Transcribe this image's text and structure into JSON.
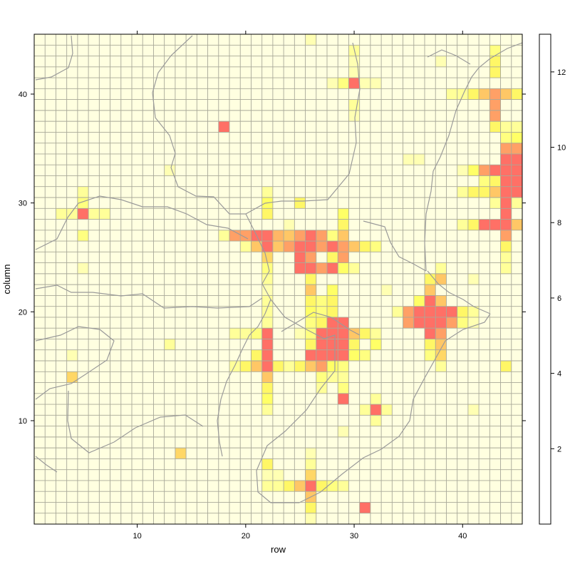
{
  "chart_data": {
    "type": "heatmap",
    "title": "",
    "xlabel": "row",
    "ylabel": "column",
    "xlim": [
      0.5,
      45.5
    ],
    "ylim": [
      0.5,
      45.5
    ],
    "x_ticks": [
      10,
      20,
      30,
      40
    ],
    "y_ticks": [
      10,
      20,
      30,
      40
    ],
    "colorbar": {
      "ticks": [
        2,
        4,
        6,
        8,
        10,
        12
      ],
      "range": [
        0,
        13
      ],
      "palette": [
        "#FFFFE0",
        "#FFFFCC",
        "#FFFFB3",
        "#FFFF99",
        "#FFFF80",
        "#FFFF66",
        "#FFF766",
        "#FFE766",
        "#FFD766",
        "#FFC766",
        "#FFB766",
        "#FFA066",
        "#FF8866",
        "#FF7066",
        "#FF6066"
      ]
    },
    "grid": true,
    "background_map": "coastline/boundary outline",
    "cells": [
      [
        26,
        45,
        2
      ],
      [
        30,
        44,
        3
      ],
      [
        43,
        44,
        4
      ],
      [
        30,
        43,
        2
      ],
      [
        38,
        43,
        2
      ],
      [
        43,
        43,
        6
      ],
      [
        30,
        42,
        2
      ],
      [
        43,
        42,
        6
      ],
      [
        28,
        41,
        2
      ],
      [
        29,
        41,
        4
      ],
      [
        30,
        41,
        12
      ],
      [
        31,
        41,
        2
      ],
      [
        32,
        41,
        2
      ],
      [
        39,
        40,
        3
      ],
      [
        40,
        40,
        3
      ],
      [
        41,
        40,
        6
      ],
      [
        42,
        40,
        8
      ],
      [
        43,
        40,
        10
      ],
      [
        44,
        40,
        8
      ],
      [
        45,
        40,
        6
      ],
      [
        30,
        39,
        3
      ],
      [
        43,
        39,
        10
      ],
      [
        30,
        38,
        2
      ],
      [
        43,
        38,
        10
      ],
      [
        18,
        37,
        12
      ],
      [
        43,
        37,
        6
      ],
      [
        44,
        37,
        3
      ],
      [
        45,
        37,
        3
      ],
      [
        44,
        36,
        4
      ],
      [
        45,
        36,
        5
      ],
      [
        44,
        35,
        10
      ],
      [
        45,
        35,
        10
      ],
      [
        35,
        34,
        2
      ],
      [
        36,
        34,
        2
      ],
      [
        44,
        34,
        12
      ],
      [
        45,
        34,
        12
      ],
      [
        13,
        33,
        2
      ],
      [
        40,
        33,
        2
      ],
      [
        41,
        33,
        5
      ],
      [
        42,
        33,
        10
      ],
      [
        43,
        33,
        12
      ],
      [
        44,
        33,
        12
      ],
      [
        45,
        33,
        12
      ],
      [
        42,
        32,
        4
      ],
      [
        43,
        32,
        6
      ],
      [
        44,
        32,
        12
      ],
      [
        45,
        32,
        12
      ],
      [
        5,
        31,
        3
      ],
      [
        22,
        31,
        3
      ],
      [
        40,
        31,
        3
      ],
      [
        41,
        31,
        6
      ],
      [
        42,
        31,
        6
      ],
      [
        43,
        31,
        8
      ],
      [
        44,
        31,
        12
      ],
      [
        45,
        31,
        12
      ],
      [
        5,
        30,
        4
      ],
      [
        22,
        30,
        5
      ],
      [
        25,
        30,
        6
      ],
      [
        43,
        30,
        3
      ],
      [
        44,
        30,
        12
      ],
      [
        45,
        30,
        3
      ],
      [
        3,
        29,
        3
      ],
      [
        4,
        29,
        3
      ],
      [
        5,
        29,
        12
      ],
      [
        6,
        29,
        3
      ],
      [
        7,
        29,
        3
      ],
      [
        22,
        29,
        6
      ],
      [
        29,
        29,
        5
      ],
      [
        44,
        29,
        12
      ],
      [
        24,
        28,
        2
      ],
      [
        29,
        28,
        6
      ],
      [
        40,
        28,
        3
      ],
      [
        41,
        28,
        6
      ],
      [
        42,
        28,
        12
      ],
      [
        43,
        28,
        12
      ],
      [
        44,
        28,
        12
      ],
      [
        45,
        28,
        8
      ],
      [
        5,
        27,
        4
      ],
      [
        18,
        27,
        3
      ],
      [
        19,
        27,
        10
      ],
      [
        20,
        27,
        10
      ],
      [
        21,
        27,
        12
      ],
      [
        22,
        27,
        12
      ],
      [
        23,
        27,
        9
      ],
      [
        24,
        27,
        8
      ],
      [
        25,
        27,
        10
      ],
      [
        26,
        27,
        12
      ],
      [
        27,
        27,
        10
      ],
      [
        28,
        27,
        4
      ],
      [
        29,
        27,
        8
      ],
      [
        44,
        27,
        10
      ],
      [
        20,
        26,
        3
      ],
      [
        21,
        26,
        8
      ],
      [
        22,
        26,
        12
      ],
      [
        23,
        26,
        8
      ],
      [
        24,
        26,
        10
      ],
      [
        25,
        26,
        12
      ],
      [
        26,
        26,
        12
      ],
      [
        27,
        26,
        10
      ],
      [
        28,
        26,
        12
      ],
      [
        29,
        26,
        10
      ],
      [
        30,
        26,
        8
      ],
      [
        31,
        26,
        6
      ],
      [
        32,
        26,
        4
      ],
      [
        44,
        26,
        6
      ],
      [
        22,
        25,
        7
      ],
      [
        25,
        25,
        12
      ],
      [
        26,
        25,
        10
      ],
      [
        28,
        25,
        6
      ],
      [
        29,
        25,
        10
      ],
      [
        44,
        25,
        3
      ],
      [
        5,
        24,
        2
      ],
      [
        22,
        24,
        4
      ],
      [
        25,
        24,
        12
      ],
      [
        26,
        24,
        12
      ],
      [
        27,
        24,
        10
      ],
      [
        28,
        24,
        12
      ],
      [
        29,
        24,
        5
      ],
      [
        30,
        24,
        3
      ],
      [
        38,
        24,
        3
      ],
      [
        44,
        24,
        3
      ],
      [
        22,
        23,
        3
      ],
      [
        26,
        23,
        6
      ],
      [
        37,
        23,
        6
      ],
      [
        38,
        23,
        8
      ],
      [
        41,
        23,
        2
      ],
      [
        22,
        22,
        2
      ],
      [
        26,
        22,
        8
      ],
      [
        28,
        22,
        5
      ],
      [
        33,
        22,
        2
      ],
      [
        37,
        22,
        8
      ],
      [
        22,
        21,
        3
      ],
      [
        26,
        21,
        6
      ],
      [
        27,
        21,
        4
      ],
      [
        28,
        21,
        6
      ],
      [
        36,
        21,
        5
      ],
      [
        37,
        21,
        12
      ],
      [
        38,
        21,
        8
      ],
      [
        22,
        20,
        3
      ],
      [
        26,
        20,
        5
      ],
      [
        27,
        20,
        4
      ],
      [
        28,
        20,
        6
      ],
      [
        34,
        20,
        3
      ],
      [
        35,
        20,
        10
      ],
      [
        36,
        20,
        12
      ],
      [
        37,
        20,
        12
      ],
      [
        38,
        20,
        12
      ],
      [
        39,
        20,
        12
      ],
      [
        40,
        20,
        6
      ],
      [
        41,
        20,
        3
      ],
      [
        22,
        19,
        3
      ],
      [
        26,
        19,
        4
      ],
      [
        27,
        19,
        6
      ],
      [
        28,
        19,
        12
      ],
      [
        29,
        19,
        12
      ],
      [
        35,
        19,
        10
      ],
      [
        36,
        19,
        12
      ],
      [
        37,
        19,
        12
      ],
      [
        38,
        19,
        12
      ],
      [
        39,
        19,
        10
      ],
      [
        40,
        19,
        4
      ],
      [
        41,
        19,
        2
      ],
      [
        19,
        18,
        3
      ],
      [
        20,
        18,
        3
      ],
      [
        21,
        18,
        4
      ],
      [
        22,
        18,
        12
      ],
      [
        25,
        18,
        2
      ],
      [
        26,
        18,
        4
      ],
      [
        27,
        18,
        12
      ],
      [
        28,
        18,
        12
      ],
      [
        29,
        18,
        12
      ],
      [
        30,
        18,
        8
      ],
      [
        31,
        18,
        6
      ],
      [
        32,
        18,
        3
      ],
      [
        37,
        18,
        12
      ],
      [
        38,
        18,
        10
      ],
      [
        13,
        17,
        3
      ],
      [
        22,
        17,
        12
      ],
      [
        26,
        17,
        6
      ],
      [
        27,
        17,
        12
      ],
      [
        28,
        17,
        12
      ],
      [
        29,
        17,
        12
      ],
      [
        30,
        17,
        6
      ],
      [
        32,
        17,
        5
      ],
      [
        37,
        17,
        6
      ],
      [
        38,
        17,
        8
      ],
      [
        4,
        16,
        2
      ],
      [
        21,
        16,
        6
      ],
      [
        22,
        16,
        12
      ],
      [
        26,
        16,
        12
      ],
      [
        27,
        16,
        12
      ],
      [
        28,
        16,
        12
      ],
      [
        29,
        16,
        12
      ],
      [
        30,
        16,
        5
      ],
      [
        31,
        16,
        4
      ],
      [
        37,
        16,
        4
      ],
      [
        38,
        16,
        7
      ],
      [
        19,
        15,
        3
      ],
      [
        20,
        15,
        6
      ],
      [
        21,
        15,
        8
      ],
      [
        22,
        15,
        12
      ],
      [
        23,
        15,
        6
      ],
      [
        24,
        15,
        3
      ],
      [
        25,
        15,
        6
      ],
      [
        26,
        15,
        8
      ],
      [
        27,
        15,
        10
      ],
      [
        28,
        15,
        5
      ],
      [
        29,
        15,
        4
      ],
      [
        38,
        15,
        3
      ],
      [
        44,
        15,
        6
      ],
      [
        4,
        14,
        7
      ],
      [
        22,
        14,
        8
      ],
      [
        27,
        14,
        4
      ],
      [
        28,
        14,
        3
      ],
      [
        29,
        14,
        3
      ],
      [
        22,
        13,
        6
      ],
      [
        27,
        13,
        3
      ],
      [
        29,
        13,
        4
      ],
      [
        22,
        12,
        5
      ],
      [
        29,
        12,
        12
      ],
      [
        32,
        12,
        3
      ],
      [
        22,
        11,
        3
      ],
      [
        31,
        11,
        3
      ],
      [
        32,
        11,
        12
      ],
      [
        33,
        11,
        3
      ],
      [
        41,
        11,
        2
      ],
      [
        32,
        10,
        3
      ],
      [
        29,
        9,
        2
      ],
      [
        14,
        7,
        7
      ],
      [
        26,
        7,
        2
      ],
      [
        22,
        6,
        6
      ],
      [
        26,
        6,
        3
      ],
      [
        22,
        5,
        2
      ],
      [
        23,
        5,
        2
      ],
      [
        26,
        5,
        7
      ],
      [
        22,
        4,
        3
      ],
      [
        23,
        4,
        3
      ],
      [
        24,
        4,
        6
      ],
      [
        25,
        4,
        8
      ],
      [
        26,
        4,
        12
      ],
      [
        27,
        4,
        6
      ],
      [
        28,
        4,
        4
      ],
      [
        29,
        4,
        3
      ],
      [
        26,
        3,
        8
      ],
      [
        26,
        2,
        6
      ],
      [
        31,
        2,
        12
      ],
      [
        26,
        1,
        2
      ]
    ]
  }
}
